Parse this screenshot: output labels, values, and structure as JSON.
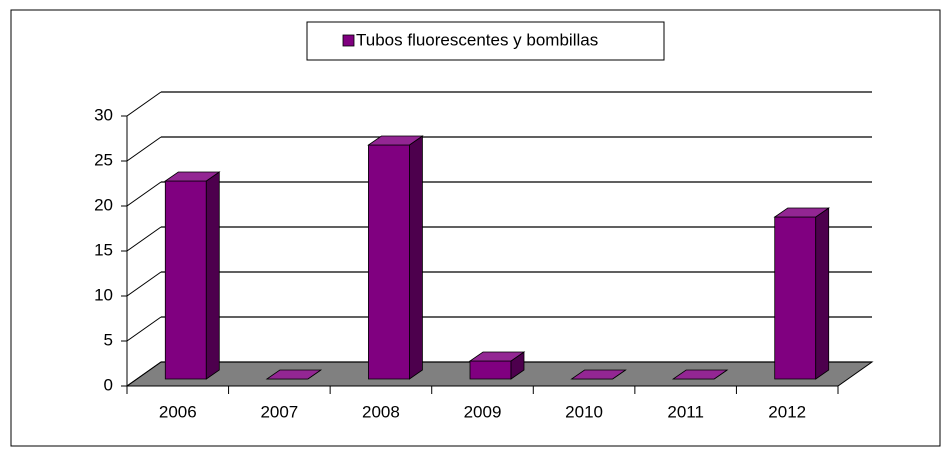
{
  "chart_data": {
    "type": "bar3d",
    "categories": [
      "2006",
      "2007",
      "2008",
      "2009",
      "2010",
      "2011",
      "2012"
    ],
    "series": [
      {
        "name": "Tubos fluorescentes y bombillas",
        "color": "#800080",
        "values": [
          22,
          0,
          26,
          2,
          0,
          0,
          18
        ]
      }
    ],
    "ylim": [
      0,
      30
    ],
    "yticks": [
      0,
      5,
      10,
      15,
      20,
      25,
      30
    ],
    "grid": true,
    "legend": "top"
  }
}
